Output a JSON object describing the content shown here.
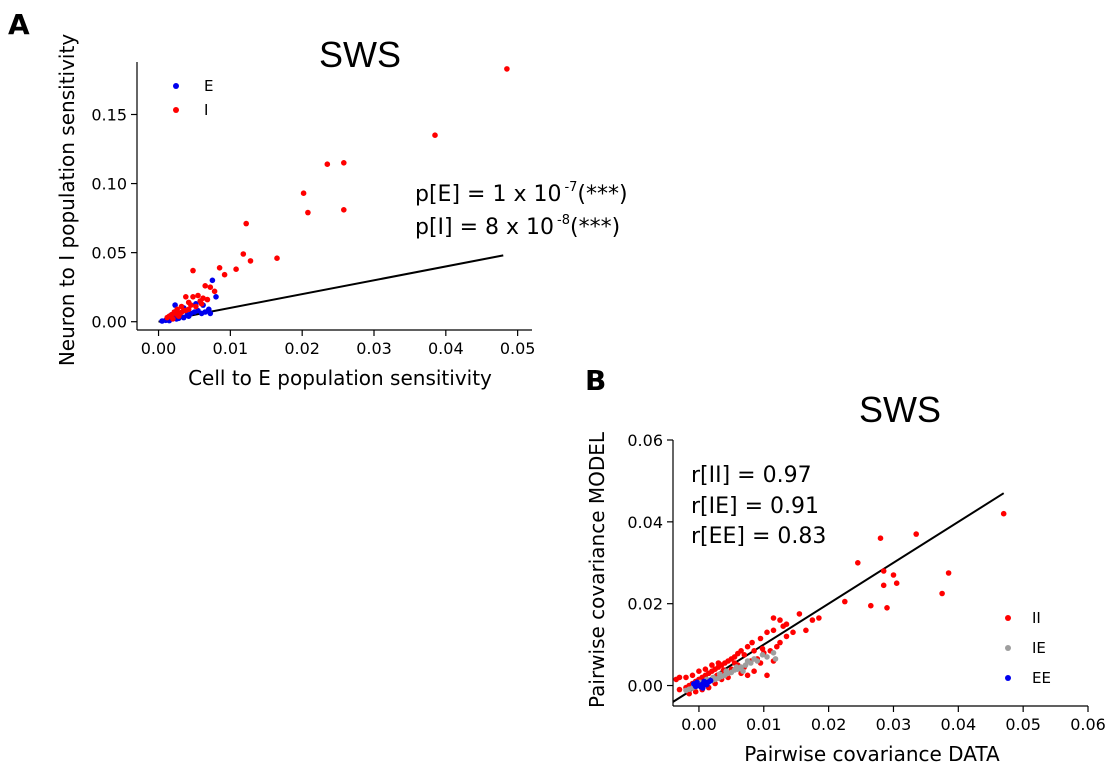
{
  "colors": {
    "E": "#0000ee",
    "I": "#ff0000",
    "II": "#ff0000",
    "IE": "#9e9e9e",
    "EE": "#0000ee",
    "fit": "#000000"
  },
  "chart_data": [
    {
      "panel": "A",
      "type": "scatter",
      "title": "SWS",
      "xlabel": "Cell to E population sensitivity",
      "ylabel": "Neuron to I population sensitivity",
      "xlim": [
        -0.003,
        0.052
      ],
      "ylim": [
        -0.006,
        0.188
      ],
      "xticks": [
        "0.00",
        "0.01",
        "0.02",
        "0.03",
        "0.04",
        "0.05"
      ],
      "yticks": [
        "0.00",
        "0.05",
        "0.10",
        "0.15"
      ],
      "legend": {
        "position": "top-left",
        "entries": [
          "E",
          "I"
        ]
      },
      "annotations": [
        {
          "prefix": "p[E] = 1 x 10",
          "sup": "-7",
          "suffix": "(***)"
        },
        {
          "prefix": "p[I] = 8 x 10",
          "sup": "-8",
          "suffix": "(***)"
        }
      ],
      "fit_line": [
        [
          0.0,
          0.0
        ],
        [
          0.048,
          0.048
        ]
      ],
      "series": [
        {
          "name": "E",
          "color_key": "E",
          "points": [
            [
              0.0005,
              0.0005
            ],
            [
              0.001,
              0.001
            ],
            [
              0.0015,
              0.002
            ],
            [
              0.002,
              0.003
            ],
            [
              0.0025,
              0.002
            ],
            [
              0.003,
              0.004
            ],
            [
              0.0035,
              0.003
            ],
            [
              0.004,
              0.005
            ],
            [
              0.0045,
              0.006
            ],
            [
              0.005,
              0.007
            ],
            [
              0.0055,
              0.008
            ],
            [
              0.006,
              0.006
            ],
            [
              0.0065,
              0.007
            ],
            [
              0.007,
              0.009
            ],
            [
              0.0072,
              0.006
            ],
            [
              0.0075,
              0.03
            ],
            [
              0.008,
              0.018
            ],
            [
              0.0023,
              0.012
            ],
            [
              0.0052,
              0.013
            ],
            [
              0.0035,
              0.01
            ],
            [
              0.0015,
              0.0008
            ],
            [
              0.0028,
              0.0025
            ],
            [
              0.0042,
              0.004
            ],
            [
              0.0062,
              0.012
            ],
            [
              0.0018,
              0.005
            ]
          ]
        },
        {
          "name": "I",
          "color_key": "I",
          "points": [
            [
              0.0485,
              0.183
            ],
            [
              0.0385,
              0.135
            ],
            [
              0.0258,
              0.115
            ],
            [
              0.0235,
              0.114
            ],
            [
              0.0202,
              0.093
            ],
            [
              0.0208,
              0.079
            ],
            [
              0.0258,
              0.081
            ],
            [
              0.0122,
              0.071
            ],
            [
              0.0118,
              0.049
            ],
            [
              0.0128,
              0.044
            ],
            [
              0.0108,
              0.038
            ],
            [
              0.0165,
              0.046
            ],
            [
              0.0092,
              0.034
            ],
            [
              0.0072,
              0.025
            ],
            [
              0.0078,
              0.022
            ],
            [
              0.0085,
              0.039
            ],
            [
              0.0048,
              0.037
            ],
            [
              0.0065,
              0.026
            ],
            [
              0.0048,
              0.018
            ],
            [
              0.0055,
              0.019
            ],
            [
              0.0042,
              0.014
            ],
            [
              0.0038,
              0.018
            ],
            [
              0.0032,
              0.011
            ],
            [
              0.0026,
              0.009
            ],
            [
              0.0022,
              0.007
            ],
            [
              0.0018,
              0.005
            ],
            [
              0.0015,
              0.004
            ],
            [
              0.0012,
              0.003
            ],
            [
              0.003,
              0.006
            ],
            [
              0.0035,
              0.008
            ],
            [
              0.0042,
              0.009
            ],
            [
              0.0058,
              0.015
            ],
            [
              0.0062,
              0.017
            ],
            [
              0.0052,
              0.011
            ],
            [
              0.002,
              0.002
            ],
            [
              0.0028,
              0.004
            ],
            [
              0.0045,
              0.012
            ],
            [
              0.006,
              0.013
            ],
            [
              0.0068,
              0.016
            ],
            [
              0.0025,
              0.0055
            ],
            [
              0.0032,
              0.0068
            ],
            [
              0.0038,
              0.0082
            ]
          ]
        }
      ]
    },
    {
      "panel": "B",
      "type": "scatter",
      "title": "SWS",
      "xlabel": "Pairwise covariance DATA",
      "ylabel": "Pairwise covariance MODEL",
      "xlim": [
        -0.004,
        0.06
      ],
      "ylim": [
        -0.005,
        0.06
      ],
      "xticks": [
        "0.00",
        "0.01",
        "0.02",
        "0.03",
        "0.04",
        "0.05",
        "0.06"
      ],
      "yticks": [
        "0.00",
        "0.02",
        "0.04",
        "0.06"
      ],
      "legend": {
        "position": "bottom-right",
        "entries": [
          "II",
          "IE",
          "EE"
        ]
      },
      "annotations": [
        {
          "text": "r[II] = 0.97"
        },
        {
          "text": "r[IE] = 0.91"
        },
        {
          "text": "r[EE] = 0.83"
        }
      ],
      "fit_line": [
        [
          -0.004,
          -0.004
        ],
        [
          0.047,
          0.047
        ]
      ],
      "series": [
        {
          "name": "II",
          "color_key": "II",
          "points": [
            [
              0.047,
              0.042
            ],
            [
              0.0335,
              0.037
            ],
            [
              0.028,
              0.036
            ],
            [
              0.0245,
              0.03
            ],
            [
              0.0285,
              0.028
            ],
            [
              0.03,
              0.027
            ],
            [
              0.0305,
              0.025
            ],
            [
              0.0285,
              0.0245
            ],
            [
              0.029,
              0.019
            ],
            [
              0.0265,
              0.0195
            ],
            [
              0.0225,
              0.0205
            ],
            [
              0.0385,
              0.0275
            ],
            [
              0.0375,
              0.0225
            ],
            [
              0.0175,
              0.016
            ],
            [
              0.0185,
              0.0165
            ],
            [
              0.0155,
              0.0175
            ],
            [
              0.0125,
              0.016
            ],
            [
              0.0115,
              0.0165
            ],
            [
              0.013,
              0.0145
            ],
            [
              0.0135,
              0.015
            ],
            [
              0.0105,
              0.013
            ],
            [
              0.0115,
              0.0135
            ],
            [
              0.012,
              0.0095
            ],
            [
              0.0095,
              0.0115
            ],
            [
              0.0098,
              0.009
            ],
            [
              0.0082,
              0.0105
            ],
            [
              0.0075,
              0.0095
            ],
            [
              0.0085,
              0.0085
            ],
            [
              0.0065,
              0.0085
            ],
            [
              0.007,
              0.0075
            ],
            [
              0.006,
              0.0078
            ],
            [
              0.0055,
              0.007
            ],
            [
              0.005,
              0.0065
            ],
            [
              0.0045,
              0.006
            ],
            [
              0.004,
              0.0055
            ],
            [
              0.0035,
              0.005
            ],
            [
              0.003,
              0.0045
            ],
            [
              0.0025,
              0.004
            ],
            [
              0.002,
              0.0035
            ],
            [
              0.0015,
              0.003
            ],
            [
              0.001,
              0.0025
            ],
            [
              0.0005,
              0.002
            ],
            [
              0.0,
              0.0015
            ],
            [
              -0.0005,
              0.001
            ],
            [
              -0.001,
              0.0005
            ],
            [
              -0.0015,
              0.0
            ],
            [
              -0.002,
              -0.0005
            ],
            [
              -0.003,
              -0.001
            ],
            [
              -0.0035,
              0.0015
            ],
            [
              -0.003,
              0.002
            ],
            [
              -0.002,
              0.002
            ],
            [
              -0.001,
              0.0025
            ],
            [
              0.0,
              0.0035
            ],
            [
              0.001,
              0.004
            ],
            [
              0.002,
              0.005
            ],
            [
              0.003,
              0.0055
            ],
            [
              0.004,
              0.003
            ],
            [
              0.005,
              0.004
            ],
            [
              0.006,
              0.005
            ],
            [
              0.007,
              0.0045
            ],
            [
              0.008,
              0.006
            ],
            [
              0.009,
              0.0065
            ],
            [
              0.01,
              0.008
            ],
            [
              0.011,
              0.0085
            ],
            [
              0.0125,
              0.0105
            ],
            [
              0.0135,
              0.012
            ],
            [
              0.0145,
              0.013
            ],
            [
              0.0165,
              0.0135
            ],
            [
              0.0105,
              0.0025
            ],
            [
              0.0085,
              0.0035
            ],
            [
              0.0065,
              0.003
            ],
            [
              0.0045,
              0.002
            ],
            [
              0.0035,
              0.0015
            ],
            [
              0.0025,
              0.0005
            ],
            [
              0.0015,
              -0.0005
            ],
            [
              0.0005,
              -0.001
            ],
            [
              -0.0005,
              -0.0015
            ],
            [
              -0.0015,
              -0.002
            ],
            [
              0.0075,
              0.0025
            ],
            [
              0.0095,
              0.0055
            ],
            [
              0.0115,
              0.006
            ],
            [
              0.0055,
              0.0055
            ],
            [
              0.0038,
              0.0038
            ],
            [
              0.0028,
              0.0025
            ]
          ]
        },
        {
          "name": "IE",
          "color_key": "IE",
          "points": [
            [
              0.0115,
              0.008
            ],
            [
              0.0105,
              0.007
            ],
            [
              0.0098,
              0.0075
            ],
            [
              0.009,
              0.006
            ],
            [
              0.0085,
              0.0065
            ],
            [
              0.008,
              0.0055
            ],
            [
              0.0072,
              0.005
            ],
            [
              0.0065,
              0.0045
            ],
            [
              0.006,
              0.004
            ],
            [
              0.0055,
              0.0038
            ],
            [
              0.005,
              0.0032
            ],
            [
              0.0045,
              0.003
            ],
            [
              0.004,
              0.0025
            ],
            [
              0.0035,
              0.0022
            ],
            [
              0.003,
              0.0018
            ],
            [
              0.0025,
              0.0015
            ],
            [
              0.002,
              0.0012
            ],
            [
              0.0015,
              0.001
            ],
            [
              0.001,
              0.0005
            ],
            [
              0.0005,
              0.0002
            ],
            [
              0.0,
              0.0
            ],
            [
              -0.0005,
              -0.0003
            ],
            [
              -0.001,
              -0.0006
            ],
            [
              -0.0015,
              -0.0009
            ],
            [
              -0.002,
              -0.0012
            ],
            [
              0.0118,
              0.0065
            ],
            [
              0.0075,
              0.006
            ],
            [
              0.0068,
              0.0035
            ],
            [
              0.0058,
              0.0045
            ],
            [
              0.0042,
              0.0035
            ],
            [
              0.0032,
              0.0028
            ],
            [
              0.0022,
              0.002
            ],
            [
              0.0012,
              0.0015
            ],
            [
              0.0002,
              0.0008
            ],
            [
              -0.0008,
              0.0002
            ]
          ]
        },
        {
          "name": "EE",
          "color_key": "EE",
          "points": [
            [
              0.0,
              0.0
            ],
            [
              0.0005,
              0.0003
            ],
            [
              0.001,
              0.0006
            ],
            [
              0.0015,
              0.0009
            ],
            [
              -0.0005,
              -0.0002
            ],
            [
              -0.0008,
              0.0004
            ],
            [
              0.0003,
              -0.0003
            ],
            [
              0.0012,
              0.0002
            ],
            [
              0.0008,
              0.001
            ],
            [
              -0.0003,
              0.0008
            ],
            [
              0.0006,
              -0.0006
            ],
            [
              0.0018,
              0.0012
            ]
          ]
        }
      ]
    }
  ]
}
